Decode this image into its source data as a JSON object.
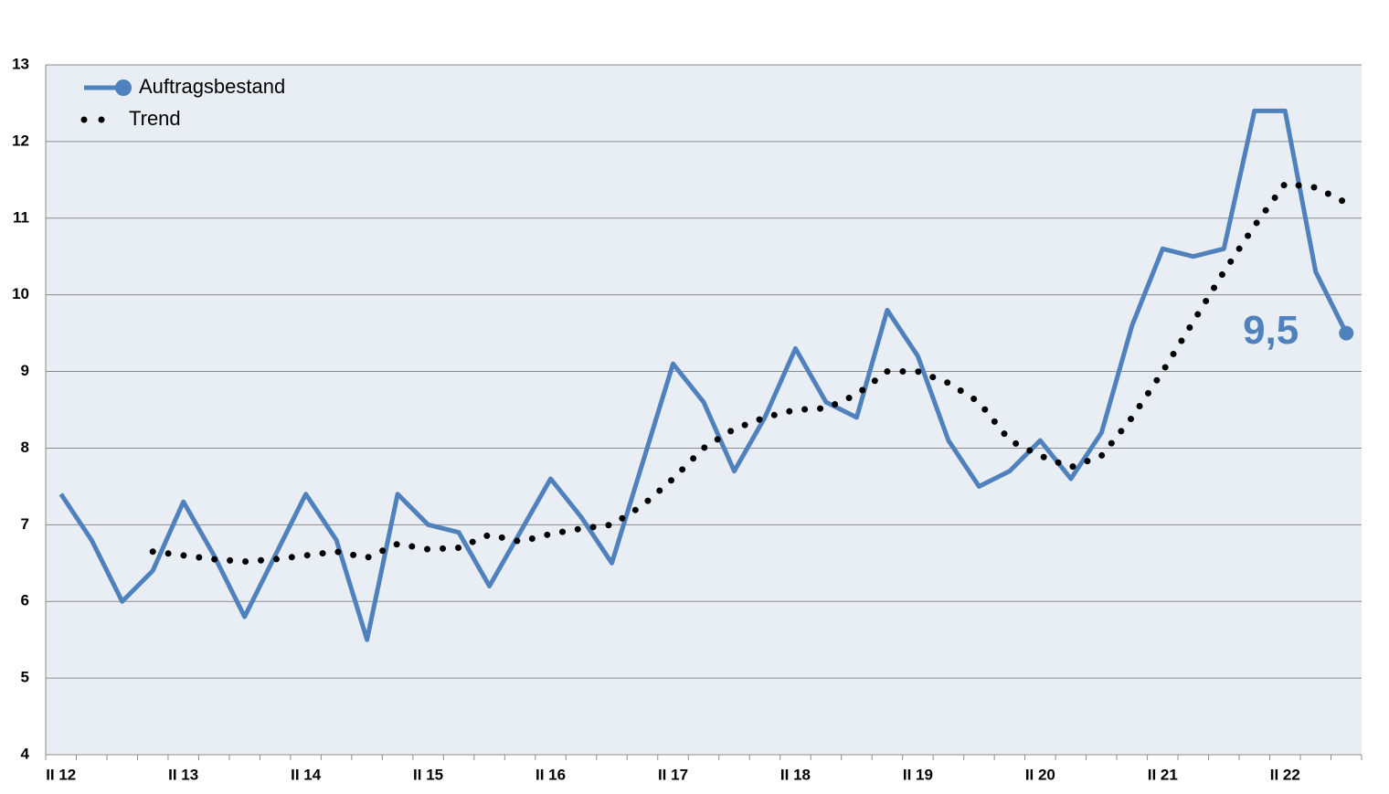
{
  "chart_data": {
    "type": "line",
    "categories": [
      "II 12",
      null,
      null,
      null,
      "II 13",
      null,
      null,
      null,
      "II 14",
      null,
      null,
      null,
      "II 15",
      null,
      null,
      null,
      "II 16",
      null,
      null,
      null,
      "II 17",
      null,
      null,
      null,
      "II 18",
      null,
      null,
      null,
      "II 19",
      null,
      null,
      null,
      "II 20",
      null,
      null,
      null,
      "II 21",
      null,
      null,
      null,
      "II 22",
      null,
      null
    ],
    "series": [
      {
        "name": "Auftragsbestand",
        "color": "#4f81bd",
        "values": [
          7.4,
          6.8,
          6.0,
          6.4,
          7.3,
          6.6,
          5.8,
          6.6,
          7.4,
          6.8,
          5.5,
          7.4,
          7.0,
          6.9,
          6.2,
          6.9,
          7.6,
          7.1,
          6.5,
          7.8,
          9.1,
          8.6,
          7.7,
          8.4,
          9.3,
          8.6,
          8.4,
          9.8,
          9.2,
          8.1,
          7.5,
          7.7,
          8.1,
          7.6,
          8.2,
          9.6,
          10.6,
          10.5,
          10.6,
          12.4,
          12.4,
          10.3,
          9.5
        ],
        "value_labels": [
          null,
          null,
          null,
          null,
          null,
          null,
          null,
          null,
          null,
          null,
          null,
          null,
          null,
          null,
          null,
          null,
          null,
          null,
          null,
          null,
          null,
          null,
          null,
          null,
          null,
          null,
          null,
          null,
          null,
          null,
          null,
          null,
          null,
          null,
          null,
          null,
          null,
          null,
          null,
          null,
          null,
          null,
          "9,5"
        ]
      },
      {
        "name": "Trend",
        "color": "#000000",
        "values": [
          null,
          null,
          null,
          6.65,
          6.6,
          6.55,
          6.52,
          6.55,
          6.6,
          6.65,
          6.57,
          6.75,
          6.68,
          6.7,
          6.87,
          6.78,
          6.88,
          6.95,
          7.0,
          7.25,
          7.6,
          8.0,
          8.25,
          8.4,
          8.5,
          8.52,
          8.7,
          9.0,
          9.0,
          8.85,
          8.6,
          8.1,
          7.9,
          7.75,
          7.9,
          8.4,
          9.0,
          9.65,
          10.3,
          10.9,
          11.45,
          11.4,
          11.2
        ]
      }
    ],
    "ylim": [
      4,
      13
    ],
    "yticks": [
      4,
      5,
      6,
      7,
      8,
      9,
      10,
      11,
      12,
      13
    ],
    "grid": true,
    "legend": "top-left"
  }
}
